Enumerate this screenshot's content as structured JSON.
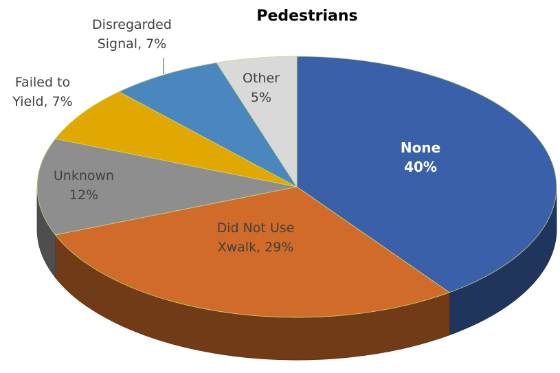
{
  "chart_data": {
    "type": "pie",
    "title": "Pedestrians",
    "values": [
      40,
      29,
      12,
      7,
      7,
      5
    ],
    "value_labels": [
      "None\n40%",
      "Did Not Use\nXwalk, 29%",
      "Unknown\n12%",
      "Failed to\nYield, 7%",
      "Disregarded\nSignal, 7%",
      "Other\n5%"
    ],
    "colors": [
      "#3a60a9",
      "#d06b29",
      "#8e8e8e",
      "#e0a800",
      "#4a87bf",
      "#d9d9d9"
    ]
  }
}
